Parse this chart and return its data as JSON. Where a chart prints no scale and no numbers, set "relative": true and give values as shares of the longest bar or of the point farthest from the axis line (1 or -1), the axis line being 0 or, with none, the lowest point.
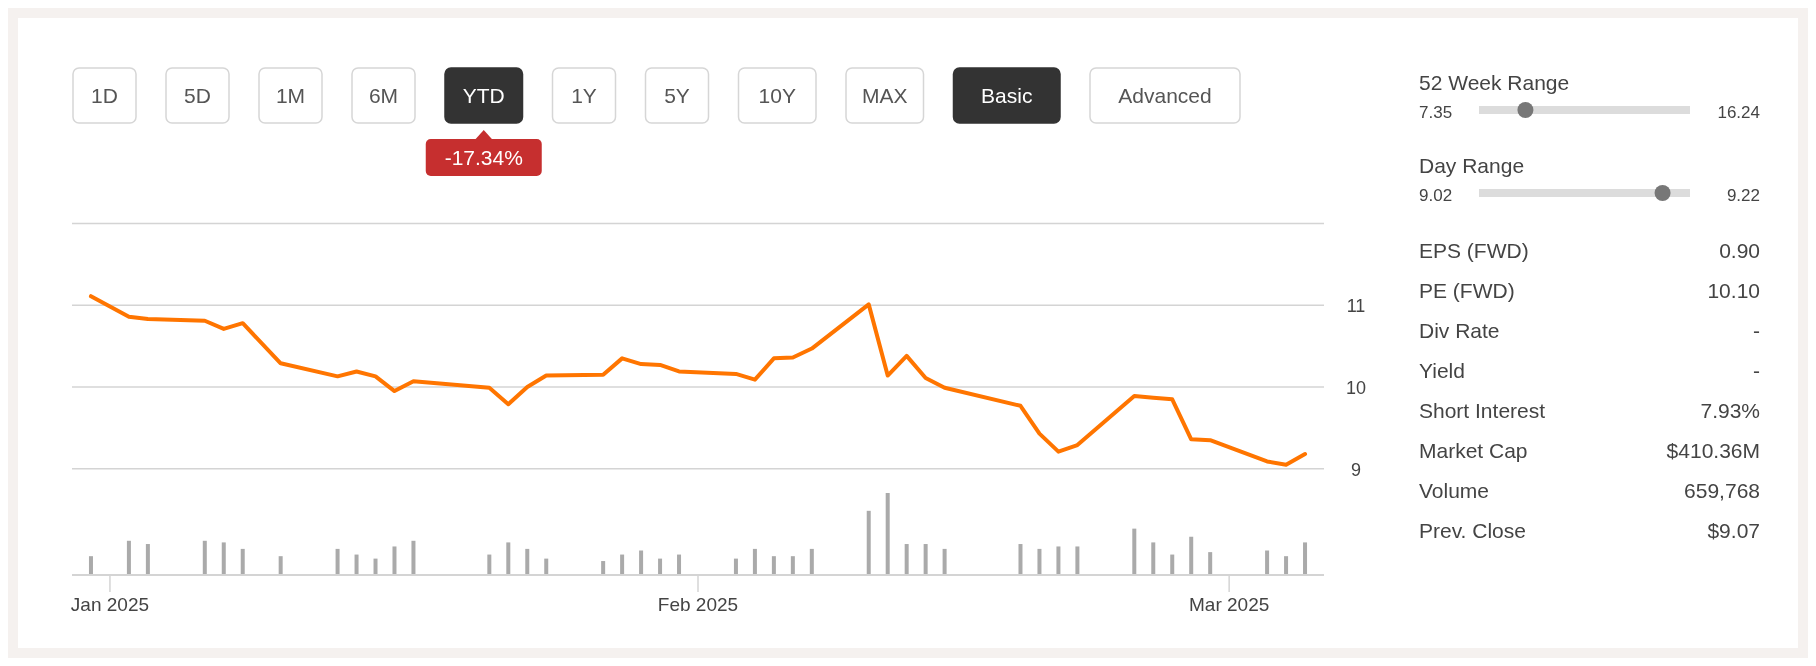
{
  "chart_data": [
    {
      "type": "other",
      "categories": [
        "1D",
        "5D",
        "1M",
        "6M",
        "YTD",
        "1Y",
        "5Y",
        "10Y",
        "MAX",
        "Basic",
        "Advanced"
      ],
      "colors": [
        "#ffffff",
        "#ffffff",
        "#ffffff",
        "#ffffff",
        "#333333",
        "#ffffff",
        "#ffffff",
        "#ffffff",
        "#ffffff",
        "#333333",
        "#ffffff"
      ],
      "annotations": [
        {
          "text": "-17.34%",
          "x": "YTD"
        }
      ]
    },
    {
      "type": "line",
      "x": [
        "2024-12-31",
        "2025-01-02",
        "2025-01-03",
        "2025-01-06",
        "2025-01-07",
        "2025-01-08",
        "2025-01-10",
        "2025-01-13",
        "2025-01-14",
        "2025-01-15",
        "2025-01-16",
        "2025-01-17",
        "2025-01-21",
        "2025-01-22",
        "2025-01-23",
        "2025-01-24",
        "2025-01-27",
        "2025-01-28",
        "2025-01-29",
        "2025-01-30",
        "2025-01-31",
        "2025-02-03",
        "2025-02-04",
        "2025-02-05",
        "2025-02-06",
        "2025-02-07",
        "2025-02-10",
        "2025-02-11",
        "2025-02-12",
        "2025-02-13",
        "2025-02-14",
        "2025-02-18",
        "2025-02-19",
        "2025-02-20",
        "2025-02-21",
        "2025-02-24",
        "2025-02-25",
        "2025-02-26",
        "2025-02-27",
        "2025-02-28",
        "2025-03-03",
        "2025-03-04",
        "2025-03-05"
      ],
      "series": [
        {
          "color": "#ff7500",
          "values": [
            11.11,
            10.86,
            10.83,
            10.81,
            10.71,
            10.78,
            10.29,
            10.13,
            10.19,
            10.13,
            9.95,
            10.07,
            9.99,
            9.79,
            10.0,
            10.14,
            10.15,
            10.35,
            10.28,
            10.27,
            10.19,
            10.16,
            10.09,
            10.35,
            10.36,
            10.47,
            11.01,
            10.14,
            10.38,
            10.11,
            9.99,
            9.77,
            9.43,
            9.21,
            9.29,
            9.89,
            9.87,
            9.85,
            9.36,
            9.35,
            9.09,
            9.05,
            9.18
          ]
        }
      ],
      "xlim": [
        "2024-12-30",
        "2025-03-06"
      ],
      "ylim": [
        9,
        12
      ],
      "yticks": [
        9,
        10,
        11,
        {
          "value": 12,
          "label": null
        }
      ],
      "grid": "y",
      "tick_labels": "y"
    },
    {
      "type": "bar",
      "relative": true,
      "x": [
        "2024-12-31",
        "2025-01-02",
        "2025-01-03",
        "2025-01-06",
        "2025-01-07",
        "2025-01-08",
        "2025-01-10",
        "2025-01-13",
        "2025-01-14",
        "2025-01-15",
        "2025-01-16",
        "2025-01-17",
        "2025-01-21",
        "2025-01-22",
        "2025-01-23",
        "2025-01-24",
        "2025-01-27",
        "2025-01-28",
        "2025-01-29",
        "2025-01-30",
        "2025-01-31",
        "2025-02-03",
        "2025-02-04",
        "2025-02-05",
        "2025-02-06",
        "2025-02-07",
        "2025-02-10",
        "2025-02-11",
        "2025-02-12",
        "2025-02-13",
        "2025-02-14",
        "2025-02-18",
        "2025-02-19",
        "2025-02-20",
        "2025-02-21",
        "2025-02-24",
        "2025-02-25",
        "2025-02-26",
        "2025-02-27",
        "2025-02-28",
        "2025-03-03",
        "2025-03-04",
        "2025-03-05"
      ],
      "series": [
        {
          "color": "#aaaaaa",
          "values": [
            0.22,
            0.41,
            0.37,
            0.41,
            0.39,
            0.31,
            0.22,
            0.31,
            0.24,
            0.19,
            0.34,
            0.41,
            0.24,
            0.39,
            0.31,
            0.19,
            0.16,
            0.24,
            0.29,
            0.19,
            0.24,
            0.19,
            0.31,
            0.22,
            0.22,
            0.31,
            0.78,
            1.0,
            0.37,
            0.37,
            0.31,
            0.37,
            0.31,
            0.34,
            0.34,
            0.56,
            0.39,
            0.24,
            0.46,
            0.27,
            0.29,
            0.22,
            0.39
          ]
        }
      ],
      "xlim": [
        "2024-12-30",
        "2025-03-06"
      ],
      "xticks": [
        {
          "value": "2025-01-01",
          "label": "Jan 2025"
        },
        {
          "value": "2025-02-01",
          "label": "Feb 2025"
        },
        {
          "value": "2025-03-01",
          "label": "Mar 2025"
        }
      ],
      "tick_labels": "x"
    },
    {
      "type": "other",
      "annotations": [
        "52 Week Range",
        "7.35",
        "16.24",
        "Day Range",
        "9.02",
        "9.22",
        "EPS (FWD)",
        "0.90",
        "PE (FWD)",
        "10.10",
        "Div Rate",
        "-",
        "Yield",
        "-",
        "Short Interest",
        "7.93%",
        "Market Cap",
        "$410.36M",
        "Volume",
        "659,768",
        "Prev. Close",
        "$9.07"
      ]
    }
  ]
}
